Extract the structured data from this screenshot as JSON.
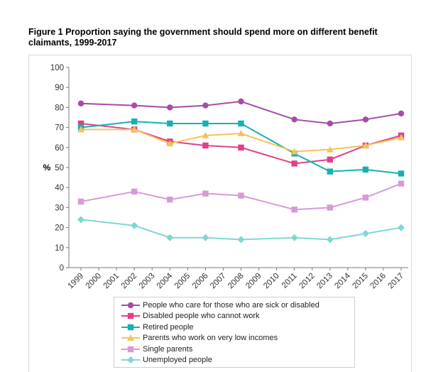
{
  "title": "Figure 1 Proportion saying the government should spend more on different benefit claimants, 1999-2017",
  "chart_data": {
    "type": "line",
    "title": "Figure 1 Proportion saying the government should spend more on different benefit claimants, 1999-2017",
    "xlabel": "",
    "ylabel": "%",
    "ylim": [
      0,
      100
    ],
    "yticks": [
      "0",
      "10",
      "20",
      "30",
      "40",
      "50",
      "60",
      "70",
      "80",
      "90",
      "100"
    ],
    "categories": [
      "1999",
      "2000",
      "2001",
      "2002",
      "2003",
      "2004",
      "2005",
      "2006",
      "2007",
      "2008",
      "2009",
      "2010",
      "2011",
      "2012",
      "2013",
      "2014",
      "2015",
      "2016",
      "2017"
    ],
    "series": [
      {
        "name": "People who care for those who are sick or disabled",
        "color": "#a64ca6",
        "marker": "circle",
        "values": [
          82,
          null,
          null,
          81,
          null,
          80,
          null,
          81,
          null,
          83,
          null,
          null,
          74,
          null,
          72,
          null,
          74,
          null,
          77
        ]
      },
      {
        "name": "Disabled people who cannot work",
        "color": "#e0408a",
        "marker": "square",
        "values": [
          72,
          null,
          null,
          69,
          null,
          63,
          null,
          61,
          null,
          60,
          null,
          null,
          52,
          null,
          54,
          null,
          61,
          null,
          66
        ]
      },
      {
        "name": "Retired people",
        "color": "#14b2b2",
        "marker": "square",
        "values": [
          70,
          null,
          null,
          73,
          null,
          72,
          null,
          72,
          null,
          72,
          null,
          null,
          57,
          null,
          48,
          null,
          49,
          null,
          47
        ]
      },
      {
        "name": "Parents who work on very low incomes",
        "color": "#f4c35a",
        "marker": "triangle",
        "values": [
          69,
          null,
          null,
          69,
          null,
          62,
          null,
          66,
          null,
          67,
          null,
          null,
          58,
          null,
          59,
          null,
          61,
          null,
          65
        ]
      },
      {
        "name": "Single parents",
        "color": "#d79ad7",
        "marker": "square",
        "values": [
          33,
          null,
          null,
          38,
          null,
          34,
          null,
          37,
          null,
          36,
          null,
          null,
          29,
          null,
          30,
          null,
          35,
          null,
          42
        ]
      },
      {
        "name": "Unemployed people",
        "color": "#7fd7d2",
        "marker": "diamond",
        "values": [
          24,
          null,
          null,
          21,
          null,
          15,
          null,
          15,
          null,
          14,
          null,
          null,
          15,
          null,
          14,
          null,
          17,
          null,
          20
        ]
      }
    ],
    "legend": "bottom"
  }
}
